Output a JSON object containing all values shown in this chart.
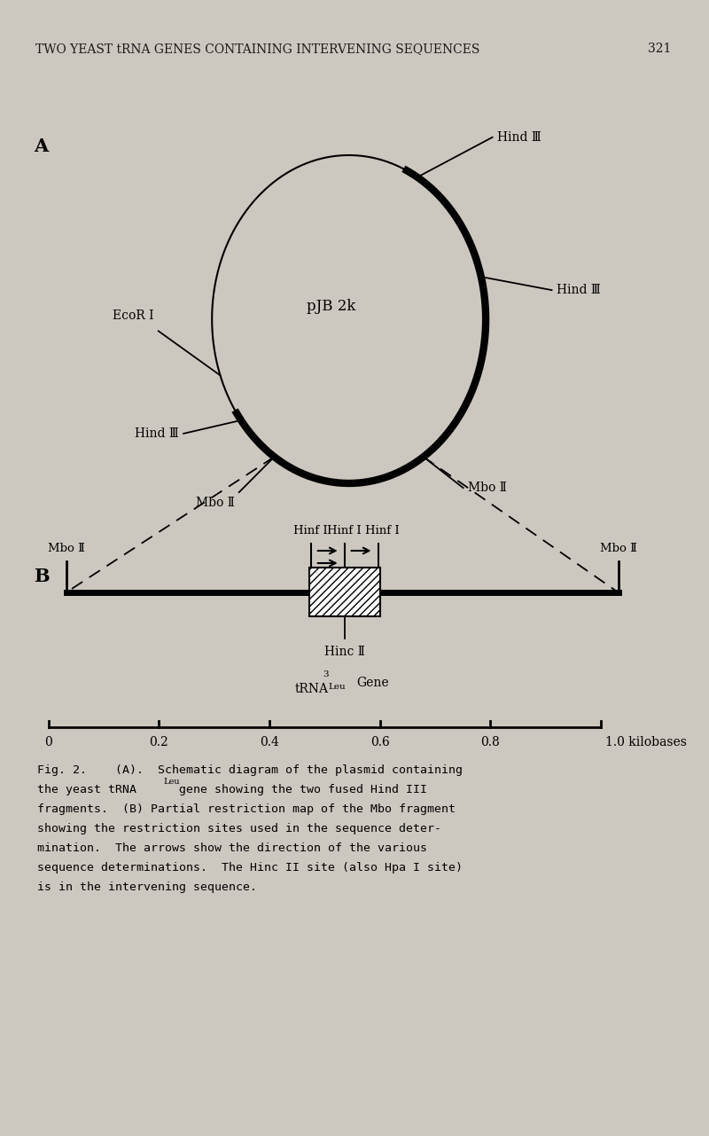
{
  "bg_color": "#cdc8bf",
  "header_text": "TWO YEAST tRNA GENES CONTAINING INTERVENING SEQUENCES",
  "page_number": "321",
  "panel_A_label": "A",
  "panel_B_label": "B",
  "plasmid_label": "pJB 2k",
  "scale_labels": [
    "0",
    "0.2",
    "0.4",
    "0.6",
    "0.8",
    "1.0 kilobases"
  ]
}
